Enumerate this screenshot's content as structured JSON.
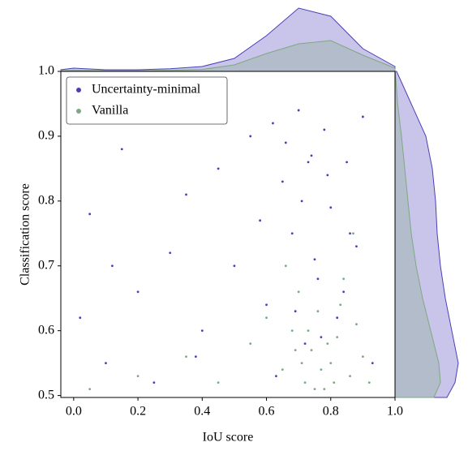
{
  "chart_data": {
    "type": "scatter",
    "x_label": "IoU score",
    "y_label": "Classification score",
    "xlim": [
      -0.04,
      1.0
    ],
    "ylim": [
      0.497,
      1.0
    ],
    "xticks": [
      {
        "value": 0,
        "label": "0.0"
      },
      0.2,
      0.4,
      0.6,
      0.8,
      {
        "value": 1,
        "label": "1.0"
      }
    ],
    "yticks": [
      0.5,
      0.6,
      0.7,
      0.8,
      0.9,
      {
        "value": 1,
        "label": "1.0"
      }
    ],
    "legend": "upper left",
    "series": [
      {
        "name": "Uncertainty-minimal",
        "color": "#4b3fb8",
        "x": [
          0.02,
          0.05,
          0.1,
          0.15,
          0.2,
          0.25,
          0.3,
          0.35,
          0.4,
          0.45,
          0.5,
          0.55,
          0.6,
          0.62,
          0.65,
          0.68,
          0.7,
          0.72,
          0.74,
          0.76,
          0.78,
          0.8,
          0.82,
          0.85,
          0.88,
          0.9,
          0.93,
          0.66,
          0.71,
          0.75,
          0.79,
          0.84,
          0.58,
          0.63,
          0.69,
          0.73,
          0.77,
          0.86,
          0.12,
          0.38
        ],
        "values": [
          0.62,
          0.78,
          0.55,
          0.88,
          0.66,
          0.52,
          0.72,
          0.81,
          0.6,
          0.85,
          0.7,
          0.9,
          0.64,
          0.92,
          0.83,
          0.75,
          0.94,
          0.58,
          0.87,
          0.68,
          0.91,
          0.79,
          0.62,
          0.86,
          0.73,
          0.93,
          0.55,
          0.89,
          0.8,
          0.71,
          0.84,
          0.66,
          0.77,
          0.53,
          0.63,
          0.86,
          0.59,
          0.75,
          0.7,
          0.56
        ]
      },
      {
        "name": "Vanilla",
        "color": "#7fa880",
        "x": [
          0.05,
          0.2,
          0.35,
          0.45,
          0.55,
          0.6,
          0.65,
          0.68,
          0.7,
          0.72,
          0.74,
          0.76,
          0.78,
          0.8,
          0.82,
          0.84,
          0.86,
          0.88,
          0.9,
          0.92,
          0.66,
          0.71,
          0.75,
          0.79,
          0.83,
          0.77,
          0.81,
          0.73,
          0.69,
          0.87
        ],
        "values": [
          0.51,
          0.53,
          0.56,
          0.52,
          0.58,
          0.62,
          0.54,
          0.6,
          0.66,
          0.52,
          0.57,
          0.63,
          0.51,
          0.55,
          0.59,
          0.68,
          0.53,
          0.61,
          0.56,
          0.52,
          0.7,
          0.55,
          0.51,
          0.58,
          0.64,
          0.54,
          0.52,
          0.6,
          0.57,
          0.75
        ]
      }
    ],
    "top_kde": {
      "grid": [
        -0.04,
        0,
        0.1,
        0.2,
        0.3,
        0.4,
        0.5,
        0.6,
        0.7,
        0.8,
        0.9,
        1.0
      ],
      "lim": [
        0,
        2.0
      ],
      "densities": [
        [
          0.05,
          0.1,
          0.05,
          0.05,
          0.08,
          0.15,
          0.4,
          1.1,
          1.95,
          1.7,
          0.7,
          0.15
        ],
        [
          0.02,
          0.03,
          0.02,
          0.02,
          0.03,
          0.06,
          0.2,
          0.55,
          0.85,
          0.95,
          0.5,
          0.1
        ]
      ]
    },
    "right_kde": {
      "grid": [
        0.497,
        0.52,
        0.55,
        0.6,
        0.65,
        0.7,
        0.75,
        0.8,
        0.85,
        0.9,
        0.95,
        1.0
      ],
      "lim": [
        0,
        2.0
      ],
      "densities": [
        [
          1.6,
          1.85,
          1.95,
          1.75,
          1.55,
          1.4,
          1.3,
          1.25,
          1.15,
          0.95,
          0.5,
          0.05
        ],
        [
          1.2,
          1.4,
          1.35,
          1.1,
          0.85,
          0.65,
          0.5,
          0.4,
          0.3,
          0.2,
          0.08,
          0.01
        ]
      ]
    }
  }
}
